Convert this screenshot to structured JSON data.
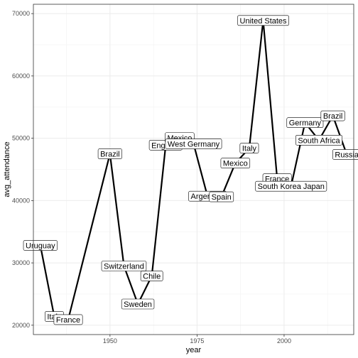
{
  "chart_data": {
    "type": "line",
    "xlabel": "year",
    "ylabel": "avg_attendance",
    "xlim": [
      1928,
      2020
    ],
    "ylim": [
      18500,
      71500
    ],
    "x_ticks": [
      1950,
      1975,
      2000
    ],
    "y_ticks": [
      20000,
      30000,
      40000,
      50000,
      60000,
      70000
    ],
    "grid": true,
    "line_color": "#000000",
    "series": [
      {
        "points": [
          {
            "x": 1930,
            "y": 32800,
            "label": "Uruguay"
          },
          {
            "x": 1934,
            "y": 21400,
            "label": "Italy"
          },
          {
            "x": 1938,
            "y": 20900,
            "label": "France"
          },
          {
            "x": 1950,
            "y": 47500,
            "label": "Brazil"
          },
          {
            "x": 1954,
            "y": 29500,
            "label": "Switzerland"
          },
          {
            "x": 1958,
            "y": 23400,
            "label": "Sweden"
          },
          {
            "x": 1962,
            "y": 27900,
            "label": "Chile"
          },
          {
            "x": 1966,
            "y": 48900,
            "label": "England"
          },
          {
            "x": 1970,
            "y": 50100,
            "label": "Mexico"
          },
          {
            "x": 1974,
            "y": 49100,
            "label": "West Germany"
          },
          {
            "x": 1978,
            "y": 40700,
            "label": "Argentina"
          },
          {
            "x": 1982,
            "y": 40600,
            "label": "Spain"
          },
          {
            "x": 1986,
            "y": 46000,
            "label": "Mexico"
          },
          {
            "x": 1990,
            "y": 48400,
            "label": "Italy"
          },
          {
            "x": 1994,
            "y": 68900,
            "label": "United States"
          },
          {
            "x": 1998,
            "y": 43500,
            "label": "France"
          },
          {
            "x": 2002,
            "y": 42300,
            "label": "South Korea Japan"
          },
          {
            "x": 2006,
            "y": 52500,
            "label": "Germany"
          },
          {
            "x": 2010,
            "y": 49700,
            "label": "South Africa"
          },
          {
            "x": 2014,
            "y": 53600,
            "label": "Brazil"
          },
          {
            "x": 2018,
            "y": 47400,
            "label": "Russia"
          }
        ]
      }
    ]
  }
}
